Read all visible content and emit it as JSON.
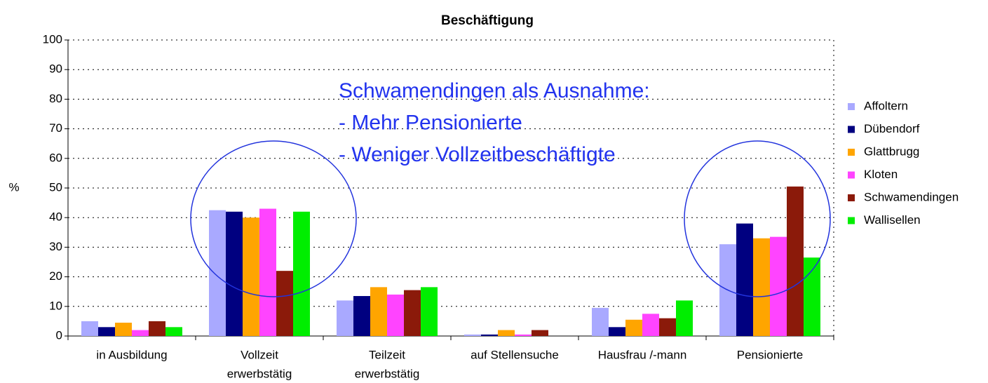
{
  "chart_data": {
    "type": "bar",
    "title": "Beschäftigung",
    "ylabel": "%",
    "categories": [
      [
        "in  Ausbildung"
      ],
      [
        "Vollzeit",
        "erwerbstätig"
      ],
      [
        "Teilzeit",
        "erwerbstätig"
      ],
      [
        "auf  Stellensuche"
      ],
      [
        "Hausfrau /-mann"
      ],
      [
        "Pensionierte"
      ]
    ],
    "series": [
      {
        "name": "Affoltern",
        "color": "#a9a9ff",
        "values": [
          5,
          42.5,
          12,
          0.5,
          9.5,
          31
        ]
      },
      {
        "name": "Dübendorf",
        "color": "#000080",
        "values": [
          3,
          42,
          13.5,
          0.5,
          3,
          38
        ]
      },
      {
        "name": "Glattbrugg",
        "color": "#ffa500",
        "values": [
          4.5,
          40,
          16.5,
          2,
          5.5,
          33
        ]
      },
      {
        "name": "Kloten",
        "color": "#ff44ff",
        "values": [
          2,
          43,
          14,
          0.5,
          7.5,
          33.5
        ]
      },
      {
        "name": "Schwamendingen",
        "color": "#8b1a0a",
        "values": [
          5,
          22,
          15.5,
          2,
          6,
          50.5
        ]
      },
      {
        "name": "Wallisellen",
        "color": "#00ee00",
        "values": [
          3,
          42,
          16.5,
          0,
          12,
          26.5
        ]
      }
    ],
    "ylim": [
      0,
      100
    ],
    "yticks": [
      0,
      10,
      20,
      30,
      40,
      50,
      60,
      70,
      80,
      90,
      100
    ],
    "grid": true,
    "legend": "right",
    "annotation": [
      "Schwamendingen als Ausnahme:",
      "- Mehr Pensionierte",
      "- Weniger Vollzeitbeschäftigte"
    ]
  }
}
